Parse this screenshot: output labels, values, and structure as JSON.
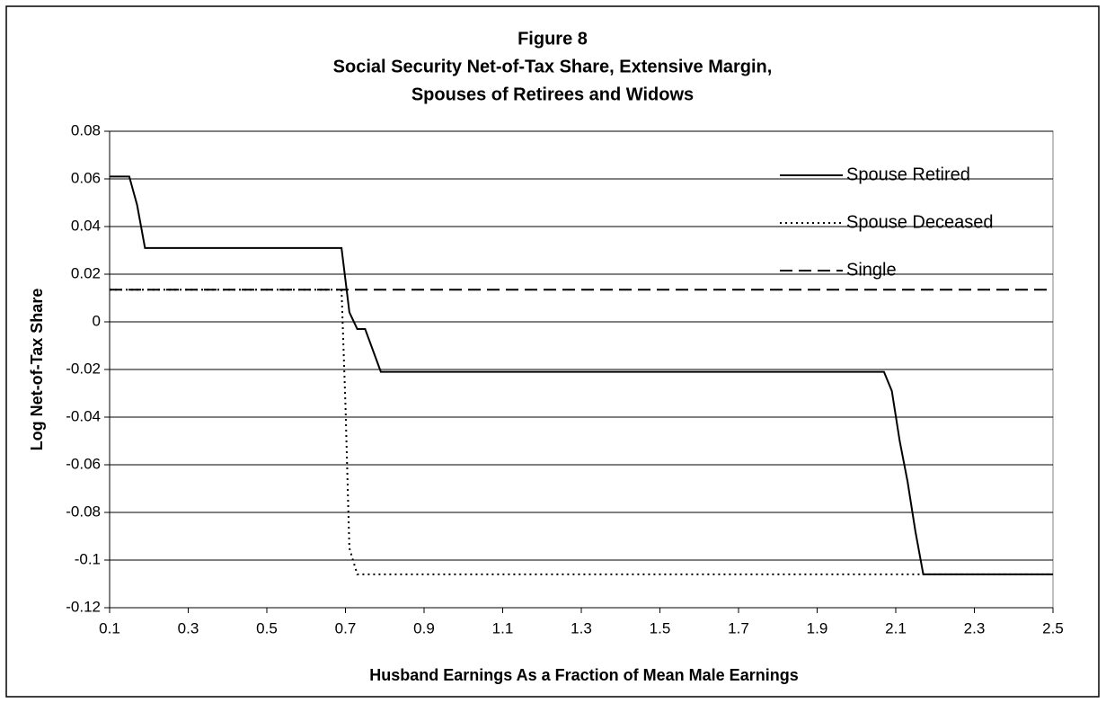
{
  "chart_data": {
    "type": "line",
    "title": [
      "Figure 8",
      "Social Security Net-of-Tax Share, Extensive Margin,",
      "Spouses of Retirees and Widows"
    ],
    "x_label": "Husband Earnings As a Fraction of Mean Male Earnings",
    "y_label": "Log Net-of-Tax Share",
    "xlim": [
      0.1,
      2.5
    ],
    "xticks": [
      0.1,
      0.3,
      0.5,
      0.7,
      0.9,
      1.1,
      1.3,
      1.5,
      1.7,
      1.9,
      2.1,
      2.3,
      2.5
    ],
    "ylim": [
      -0.12,
      0.08
    ],
    "yticks": [
      0.08,
      0.06,
      0.04,
      0.02,
      0,
      -0.02,
      -0.04,
      -0.06,
      -0.08,
      -0.1,
      -0.12
    ],
    "grid": true,
    "legend": "top-right",
    "series": [
      {
        "name": "Spouse Retired",
        "color": "#000000",
        "dash": "solid",
        "x": [
          0.1,
          0.15,
          0.17,
          0.19,
          0.69,
          0.71,
          0.73,
          0.75,
          0.79,
          2.07,
          2.09,
          2.11,
          2.13,
          2.15,
          2.17,
          2.5
        ],
        "values": [
          0.061,
          0.061,
          0.049,
          0.031,
          0.031,
          0.004,
          -0.003,
          -0.003,
          -0.021,
          -0.021,
          -0.029,
          -0.05,
          -0.067,
          -0.088,
          -0.106,
          -0.106
        ]
      },
      {
        "name": "Spouse Deceased",
        "color": "#000000",
        "dash": "dotted",
        "x": [
          0.1,
          0.69,
          0.7,
          0.71,
          0.73,
          2.5
        ],
        "values": [
          0.0135,
          0.0135,
          -0.035,
          -0.095,
          -0.106,
          -0.106
        ]
      },
      {
        "name": "Single",
        "color": "#000000",
        "dash": "dashed",
        "x": [
          0.1,
          2.5
        ],
        "values": [
          0.0135,
          0.0135
        ]
      }
    ]
  }
}
